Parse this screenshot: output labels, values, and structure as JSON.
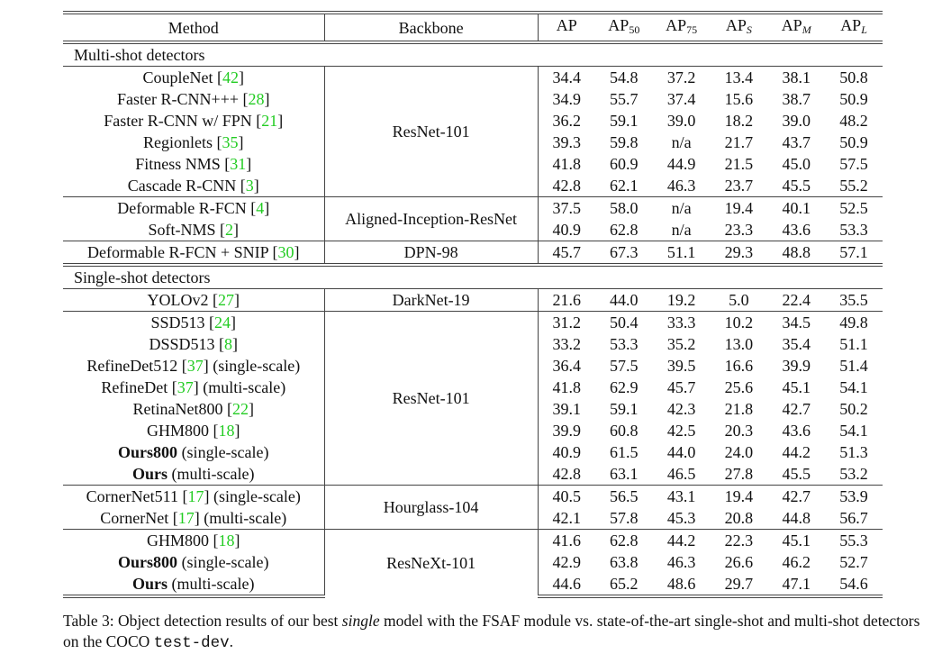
{
  "header": {
    "method": "Method",
    "backbone": "Backbone",
    "metrics": [
      {
        "base": "AP",
        "sub": "",
        "italic": false
      },
      {
        "base": "AP",
        "sub": "50",
        "italic": false
      },
      {
        "base": "AP",
        "sub": "75",
        "italic": false
      },
      {
        "base": "AP",
        "sub": "S",
        "italic": true
      },
      {
        "base": "AP",
        "sub": "M",
        "italic": true
      },
      {
        "base": "AP",
        "sub": "L",
        "italic": true
      }
    ]
  },
  "sections": [
    {
      "title": "Multi-shot detectors",
      "blocks": [
        {
          "backbone": "ResNet-101",
          "rows": [
            {
              "name": "CoupleNet",
              "bold": false,
              "ref": "42",
              "suffix": "",
              "values": [
                "34.4",
                "54.8",
                "37.2",
                "13.4",
                "38.1",
                "50.8"
              ],
              "boldv": []
            },
            {
              "name": "Faster R-CNN+++",
              "bold": false,
              "ref": "28",
              "suffix": "",
              "values": [
                "34.9",
                "55.7",
                "37.4",
                "15.6",
                "38.7",
                "50.9"
              ],
              "boldv": []
            },
            {
              "name": "Faster R-CNN w/ FPN",
              "bold": false,
              "ref": "21",
              "suffix": "",
              "values": [
                "36.2",
                "59.1",
                "39.0",
                "18.2",
                "39.0",
                "48.2"
              ],
              "boldv": []
            },
            {
              "name": "Regionlets",
              "bold": false,
              "ref": "35",
              "suffix": "",
              "values": [
                "39.3",
                "59.8",
                "n/a",
                "21.7",
                "43.7",
                "50.9"
              ],
              "boldv": []
            },
            {
              "name": "Fitness NMS",
              "bold": false,
              "ref": "31",
              "suffix": "",
              "values": [
                "41.8",
                "60.9",
                "44.9",
                "21.5",
                "45.0",
                "57.5"
              ],
              "boldv": []
            },
            {
              "name": "Cascade R-CNN",
              "bold": false,
              "ref": "3",
              "suffix": "",
              "values": [
                "42.8",
                "62.1",
                "46.3",
                "23.7",
                "45.5",
                "55.2"
              ],
              "boldv": []
            }
          ]
        },
        {
          "backbone": "Aligned-Inception-ResNet",
          "rows": [
            {
              "name": "Deformable R-FCN",
              "bold": false,
              "ref": "4",
              "suffix": "",
              "values": [
                "37.5",
                "58.0",
                "n/a",
                "19.4",
                "40.1",
                "52.5"
              ],
              "boldv": []
            },
            {
              "name": "Soft-NMS",
              "bold": false,
              "ref": "2",
              "suffix": "",
              "values": [
                "40.9",
                "62.8",
                "n/a",
                "23.3",
                "43.6",
                "53.3"
              ],
              "boldv": []
            }
          ]
        },
        {
          "backbone": "DPN-98",
          "rows": [
            {
              "name": "Deformable R-FCN + SNIP",
              "bold": false,
              "ref": "30",
              "suffix": "",
              "values": [
                "45.7",
                "67.3",
                "51.1",
                "29.3",
                "48.8",
                "57.1"
              ],
              "boldv": []
            }
          ]
        }
      ]
    },
    {
      "title": "Single-shot detectors",
      "blocks": [
        {
          "backbone": "DarkNet-19",
          "rows": [
            {
              "name": "YOLOv2",
              "bold": false,
              "ref": "27",
              "suffix": "",
              "values": [
                "21.6",
                "44.0",
                "19.2",
                "5.0",
                "22.4",
                "35.5"
              ],
              "boldv": []
            }
          ]
        },
        {
          "backbone": "ResNet-101",
          "rows": [
            {
              "name": "SSD513",
              "bold": false,
              "ref": "24",
              "suffix": "",
              "values": [
                "31.2",
                "50.4",
                "33.3",
                "10.2",
                "34.5",
                "49.8"
              ],
              "boldv": []
            },
            {
              "name": "DSSD513",
              "bold": false,
              "ref": "8",
              "suffix": "",
              "values": [
                "33.2",
                "53.3",
                "35.2",
                "13.0",
                "35.4",
                "51.1"
              ],
              "boldv": []
            },
            {
              "name": "RefineDet512",
              "bold": false,
              "ref": "37",
              "suffix": " (single-scale)",
              "values": [
                "36.4",
                "57.5",
                "39.5",
                "16.6",
                "39.9",
                "51.4"
              ],
              "boldv": []
            },
            {
              "name": "RefineDet",
              "bold": false,
              "ref": "37",
              "suffix": " (multi-scale)",
              "values": [
                "41.8",
                "62.9",
                "45.7",
                "25.6",
                "45.1",
                "54.1"
              ],
              "boldv": [
                5
              ]
            },
            {
              "name": "RetinaNet800",
              "bold": false,
              "ref": "22",
              "suffix": "",
              "values": [
                "39.1",
                "59.1",
                "42.3",
                "21.8",
                "42.7",
                "50.2"
              ],
              "boldv": []
            },
            {
              "name": "GHM800",
              "bold": false,
              "ref": "18",
              "suffix": "",
              "values": [
                "39.9",
                "60.8",
                "42.5",
                "20.3",
                "43.6",
                "54.1"
              ],
              "boldv": [
                5
              ]
            },
            {
              "name": "Ours800",
              "bold": true,
              "ref": "",
              "suffix": " (single-scale)",
              "values": [
                "40.9",
                "61.5",
                "44.0",
                "24.0",
                "44.2",
                "51.3"
              ],
              "boldv": []
            },
            {
              "name": "Ours",
              "bold": true,
              "ref": "",
              "suffix": " (multi-scale)",
              "values": [
                "42.8",
                "63.1",
                "46.5",
                "27.8",
                "45.5",
                "53.2"
              ],
              "boldv": [
                0,
                1,
                2,
                3,
                4
              ]
            }
          ]
        },
        {
          "backbone": "Hourglass-104",
          "rows": [
            {
              "name": "CornerNet511",
              "bold": false,
              "ref": "17",
              "suffix": " (single-scale)",
              "values": [
                "40.5",
                "56.5",
                "43.1",
                "19.4",
                "42.7",
                "53.9"
              ],
              "boldv": []
            },
            {
              "name": "CornerNet",
              "bold": false,
              "ref": "17",
              "suffix": " (multi-scale)",
              "values": [
                "42.1",
                "57.8",
                "45.3",
                "20.8",
                "44.8",
                "56.7"
              ],
              "boldv": []
            }
          ]
        },
        {
          "backbone": "ResNeXt-101",
          "rows": [
            {
              "name": "GHM800",
              "bold": false,
              "ref": "18",
              "suffix": "",
              "values": [
                "41.6",
                "62.8",
                "44.2",
                "22.3",
                "45.1",
                "55.3"
              ],
              "boldv": [
                5
              ]
            },
            {
              "name": "Ours800",
              "bold": true,
              "ref": "",
              "suffix": " (single-scale)",
              "values": [
                "42.9",
                "63.8",
                "46.3",
                "26.6",
                "46.2",
                "52.7"
              ],
              "boldv": []
            },
            {
              "name": "Ours",
              "bold": true,
              "ref": "",
              "suffix": " (multi-scale)",
              "values": [
                "44.6",
                "65.2",
                "48.6",
                "29.7",
                "47.1",
                "54.6"
              ],
              "boldv": [
                0,
                1,
                2,
                3,
                4
              ]
            }
          ]
        }
      ]
    }
  ],
  "caption": {
    "p1": "Table 3: Object detection results of our best ",
    "em": "single",
    "p2": " model with the FSAF module vs. state-of-the-art single-shot and multi-shot detectors on the COCO ",
    "code": "test-dev",
    "p3": "."
  }
}
